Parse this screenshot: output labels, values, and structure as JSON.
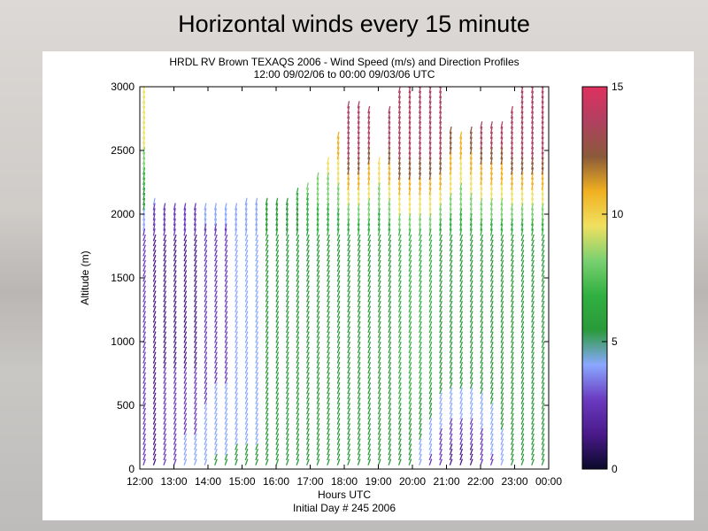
{
  "slide": {
    "title": "Horizontal winds every 15 minute"
  },
  "chart_data": {
    "type": "barbs",
    "title": "HRDL RV Brown TEXAQS 2006 - Wind Speed (m/s) and Direction Profiles",
    "subtitle": "12:00 09/02/06 to 00:00 09/03/06  UTC",
    "xlabel": "Hours UTC",
    "xlabel2": "Initial Day # 245  2006",
    "ylabel": "Altitude (m)",
    "x_ticks": [
      "12:00",
      "13:00",
      "14:00",
      "15:00",
      "16:00",
      "17:00",
      "18:00",
      "19:00",
      "20:00",
      "21:00",
      "22:00",
      "23:00",
      "00:00"
    ],
    "y_ticks": [
      "0",
      "500",
      "1000",
      "1500",
      "2000",
      "2500",
      "3000"
    ],
    "xlim": [
      12,
      24
    ],
    "ylim": [
      0,
      3000
    ],
    "colorbar": {
      "ticks": [
        "0",
        "5",
        "10",
        "15"
      ],
      "range": [
        0,
        15
      ],
      "colors": [
        "#0a0a2a",
        "#4a1a8a",
        "#6a3ac0",
        "#8aa8ff",
        "#2a9a3a",
        "#30b040",
        "#7ad070",
        "#f0e060",
        "#f0b020",
        "#8a5a3a",
        "#b04060",
        "#e03060"
      ]
    },
    "profiles": [
      {
        "time": 12.1,
        "top": 3000,
        "v_low": 3,
        "v_mid": 3,
        "v_high": 9
      },
      {
        "time": 12.4,
        "top": 2100,
        "v_low": 2,
        "v_mid": 2,
        "v_high": 6
      },
      {
        "time": 12.7,
        "top": 2050,
        "v_low": 3,
        "v_mid": 2,
        "v_high": 6
      },
      {
        "time": 13.0,
        "top": 2050,
        "v_low": 3,
        "v_mid": 2,
        "v_high": 6
      },
      {
        "time": 13.3,
        "top": 2050,
        "v_low": 4,
        "v_mid": 2,
        "v_high": 6
      },
      {
        "time": 13.6,
        "top": 2050,
        "v_low": 4,
        "v_mid": 2,
        "v_high": 6
      },
      {
        "time": 13.9,
        "top": 2050,
        "v_low": 4,
        "v_mid": 3,
        "v_high": 6
      },
      {
        "time": 14.2,
        "top": 2050,
        "v_low": 5,
        "v_mid": 3,
        "v_high": 6
      },
      {
        "time": 14.5,
        "top": 2050,
        "v_low": 5,
        "v_mid": 3,
        "v_high": 6
      },
      {
        "time": 14.8,
        "top": 2050,
        "v_low": 5,
        "v_mid": 4,
        "v_high": 6
      },
      {
        "time": 15.1,
        "top": 2100,
        "v_low": 5,
        "v_mid": 4,
        "v_high": 6
      },
      {
        "time": 15.4,
        "top": 2100,
        "v_low": 5,
        "v_mid": 4,
        "v_high": 6
      },
      {
        "time": 15.7,
        "top": 2100,
        "v_low": 5,
        "v_mid": 5,
        "v_high": 6
      },
      {
        "time": 16.0,
        "top": 2100,
        "v_low": 5,
        "v_mid": 5,
        "v_high": 6
      },
      {
        "time": 16.3,
        "top": 2100,
        "v_low": 5,
        "v_mid": 5,
        "v_high": 7
      },
      {
        "time": 16.6,
        "top": 2150,
        "v_low": 6,
        "v_mid": 5,
        "v_high": 8
      },
      {
        "time": 16.9,
        "top": 2200,
        "v_low": 6,
        "v_mid": 6,
        "v_high": 9
      },
      {
        "time": 17.2,
        "top": 2300,
        "v_low": 6,
        "v_mid": 6,
        "v_high": 10
      },
      {
        "time": 17.5,
        "top": 2400,
        "v_low": 6,
        "v_mid": 6,
        "v_high": 10
      },
      {
        "time": 17.8,
        "top": 2600,
        "v_low": 6,
        "v_mid": 6,
        "v_high": 11
      },
      {
        "time": 18.1,
        "top": 2850,
        "v_low": 5,
        "v_mid": 6,
        "v_high": 14
      },
      {
        "time": 18.4,
        "top": 2850,
        "v_low": 5,
        "v_mid": 6,
        "v_high": 14
      },
      {
        "time": 18.7,
        "top": 2800,
        "v_low": 5,
        "v_mid": 6,
        "v_high": 13
      },
      {
        "time": 19.0,
        "top": 2400,
        "v_low": 5,
        "v_mid": 6,
        "v_high": 11
      },
      {
        "time": 19.3,
        "top": 2800,
        "v_low": 5,
        "v_mid": 6,
        "v_high": 13
      },
      {
        "time": 19.6,
        "top": 2950,
        "v_low": 5,
        "v_mid": 7,
        "v_high": 14
      },
      {
        "time": 19.9,
        "top": 3000,
        "v_low": 5,
        "v_mid": 7,
        "v_high": 14
      },
      {
        "time": 20.2,
        "top": 3000,
        "v_low": 4,
        "v_mid": 7,
        "v_high": 14
      },
      {
        "time": 20.5,
        "top": 3000,
        "v_low": 3,
        "v_mid": 7,
        "v_high": 14
      },
      {
        "time": 20.8,
        "top": 3000,
        "v_low": 2,
        "v_mid": 6,
        "v_high": 14
      },
      {
        "time": 21.1,
        "top": 2650,
        "v_low": 1,
        "v_mid": 6,
        "v_high": 12
      },
      {
        "time": 21.4,
        "top": 2600,
        "v_low": 1,
        "v_mid": 6,
        "v_high": 11
      },
      {
        "time": 21.7,
        "top": 2650,
        "v_low": 1,
        "v_mid": 6,
        "v_high": 12
      },
      {
        "time": 22.0,
        "top": 2700,
        "v_low": 2,
        "v_mid": 6,
        "v_high": 13
      },
      {
        "time": 22.3,
        "top": 2700,
        "v_low": 3,
        "v_mid": 6,
        "v_high": 13
      },
      {
        "time": 22.6,
        "top": 2700,
        "v_low": 4,
        "v_mid": 6,
        "v_high": 13
      },
      {
        "time": 22.9,
        "top": 2800,
        "v_low": 5,
        "v_mid": 6,
        "v_high": 14
      },
      {
        "time": 23.2,
        "top": 3000,
        "v_low": 5,
        "v_mid": 6,
        "v_high": 14
      },
      {
        "time": 23.5,
        "top": 3000,
        "v_low": 5,
        "v_mid": 6,
        "v_high": 14
      },
      {
        "time": 23.8,
        "top": 3000,
        "v_low": 5,
        "v_mid": 6,
        "v_high": 14
      }
    ]
  }
}
